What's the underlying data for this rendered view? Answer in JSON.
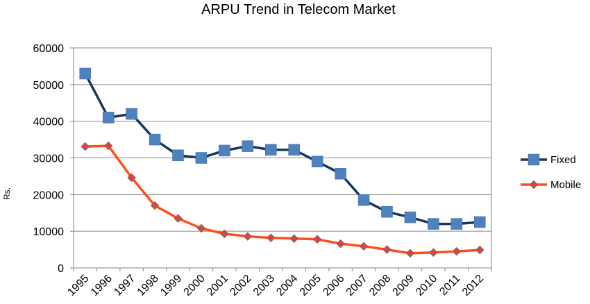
{
  "chart_data": {
    "type": "line",
    "title": "ARPU Trend in Telecom Market",
    "xlabel": "",
    "ylabel": "Rs.",
    "ylim": [
      0,
      60000
    ],
    "yticks": [
      "0",
      "10000",
      "20000",
      "30000",
      "40000",
      "50000",
      "60000"
    ],
    "categories": [
      "1995",
      "1996",
      "1997",
      "1998",
      "1999",
      "2000",
      "2001",
      "2002",
      "2003",
      "2004",
      "2005",
      "2006",
      "2007",
      "2008",
      "2009",
      "2010",
      "2011",
      "2012"
    ],
    "grid": "horizontal",
    "legend_position": "right",
    "series": [
      {
        "name": "Fixed",
        "color": "#4F81BD",
        "line_color": "#17375E",
        "marker": "square",
        "values": [
          53000,
          41000,
          42000,
          35000,
          30700,
          30000,
          32000,
          33200,
          32200,
          32200,
          29000,
          25700,
          18500,
          15300,
          13800,
          12000,
          12000,
          12500
        ]
      },
      {
        "name": "Mobile",
        "color": "#C0504D",
        "line_color": "#FF4E1A",
        "marker": "diamond",
        "values": [
          33100,
          33300,
          24600,
          17000,
          13500,
          10800,
          9300,
          8600,
          8200,
          8000,
          7800,
          6600,
          5900,
          5000,
          4000,
          4200,
          4500,
          4900
        ]
      }
    ]
  }
}
